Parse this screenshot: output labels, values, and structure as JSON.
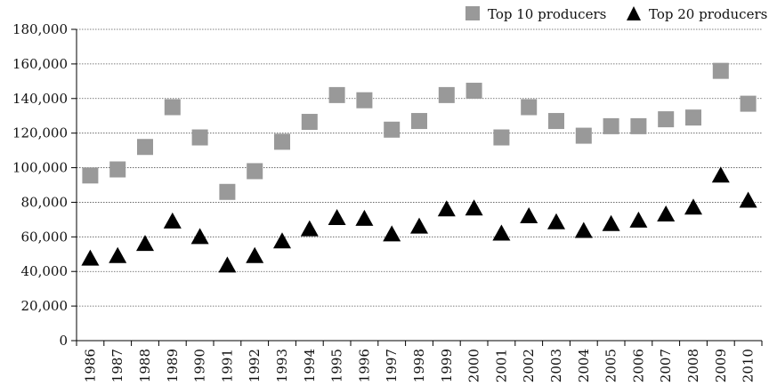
{
  "chart_data": {
    "type": "scatter",
    "title": "",
    "xlabel": "",
    "ylabel": "",
    "categories": [
      "1986",
      "1987",
      "1988",
      "1989",
      "1990",
      "1991",
      "1992",
      "1993",
      "1994",
      "1995",
      "1996",
      "1997",
      "1998",
      "1999",
      "2000",
      "2001",
      "2002",
      "2003",
      "2004",
      "2005",
      "2006",
      "2007",
      "2008",
      "2009",
      "2010"
    ],
    "series": [
      {
        "name": "Top 10 producers",
        "marker": "square",
        "color": "#999999",
        "values": [
          95500,
          99000,
          112000,
          135000,
          117500,
          86000,
          98000,
          115000,
          126500,
          142000,
          139000,
          122000,
          127000,
          142000,
          144500,
          117500,
          135000,
          127000,
          118500,
          124000,
          124000,
          128000,
          129000,
          156000,
          137000
        ]
      },
      {
        "name": "Top 20 producers",
        "marker": "triangle",
        "color": "#000000",
        "values": [
          47500,
          49000,
          56000,
          69000,
          60000,
          43500,
          49000,
          57500,
          64500,
          71000,
          70500,
          61500,
          66000,
          76000,
          76500,
          62000,
          72000,
          68500,
          63500,
          67500,
          69500,
          73000,
          77000,
          95500,
          81000
        ]
      }
    ],
    "ylim": [
      0,
      180000
    ],
    "yticks": [
      "0",
      "20,000",
      "40,000",
      "60,000",
      "80,000",
      "100,000",
      "120,000",
      "140,000",
      "160,000",
      "180,000"
    ],
    "grid": true,
    "legend_position": "top-right"
  }
}
